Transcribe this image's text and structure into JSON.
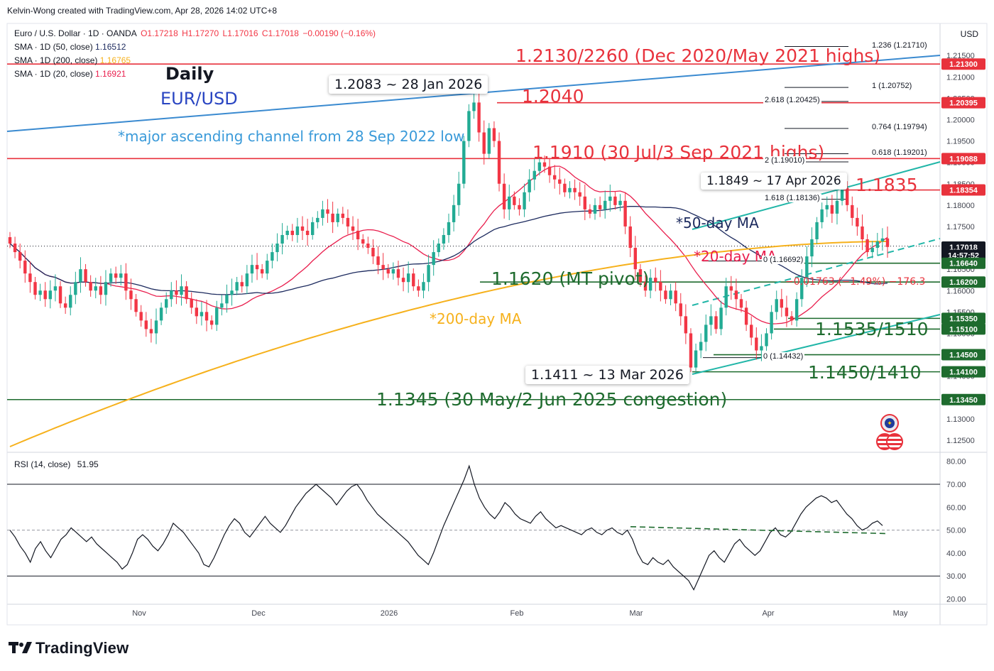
{
  "header": {
    "credit": "Kelvin-Wong created with TradingView.com, Apr 28, 2026 14:02 UTC+8",
    "symbol": "Euro / U.S. Dollar · 1D · OANDA",
    "ohlc": {
      "open": "O1.17218",
      "high": "H1.17270",
      "low": "L1.17016",
      "close": "C1.17018",
      "change": "−0.00190 (−0.16%)"
    },
    "sma50": {
      "label": "SMA · 1D (50, close)",
      "value": "1.16512",
      "color": "#1c2a5e"
    },
    "sma200": {
      "label": "SMA · 1D (200, close)",
      "value": "1.16765",
      "color": "#f6b11c"
    },
    "sma20": {
      "label": "SMA · 1D (20, close)",
      "value": "1.16921",
      "color": "#e91e4d"
    },
    "currency": "USD"
  },
  "rsi_header": {
    "label": "RSI (14, close)",
    "value": "51.95"
  },
  "branding": {
    "logo": "TradingView"
  },
  "annotations": {
    "daily": "Daily",
    "pair": "EUR/USD",
    "channel": "*major ascending channel from 28 Sep 2022 low",
    "r1": "1.2130/2260 (Dec 2020/May 2021 highs)",
    "r2": "1.2040",
    "r3": "1.1910 (30 Jul/3 Sep 2021 highs)",
    "r4": "1.1835",
    "pivot": "1.1620 (MT pivot)",
    "s1": "1.1535/1510",
    "s2": "1.1450/1410",
    "s3": "1.1345 (30 May/2 Jun 2025 congestion)",
    "ma50": "*50-day MA",
    "ma20": "*20-day MA",
    "ma200": "*200-day MA",
    "hi_jan": "1.2083 ~ 28 Jan 2026",
    "hi_apr": "1.1849 ~ 17 Apr 2026",
    "lo_mar": "1.1411 ~ 13 Mar 2026",
    "measure": "−0.01763 (−1.49%) −176.3"
  },
  "colors": {
    "red": "#e8323c",
    "green": "#1e6b2e",
    "blue": "#3a8ad0",
    "teal": "#21b6a8",
    "up": "#22ab94",
    "down": "#f23645",
    "orange": "#f6b11c",
    "navy": "#1c2a5e",
    "pink": "#e91e4d"
  },
  "fibs": [
    {
      "label": "1.236 (1.21710)",
      "price": 1.2171
    },
    {
      "label": "1 (1.20752)",
      "price": 1.20752
    },
    {
      "label": "2.618 (1.20425)",
      "price": 1.20425
    },
    {
      "label": "0.764 (1.19794)",
      "price": 1.19794
    },
    {
      "label": "0.618 (1.19201)",
      "price": 1.19201
    },
    {
      "label": "2 (1.19010)",
      "price": 1.1901
    },
    {
      "label": "1.618 (1.18136)",
      "price": 1.18136
    },
    {
      "label": "0 (1.16692)",
      "price": 1.16692
    },
    {
      "label": "0 (1.14432)",
      "price": 1.14432
    }
  ],
  "price_tags": [
    {
      "text": "1.21300",
      "price": 1.213,
      "color": "#e8323c"
    },
    {
      "text": "1.20395",
      "price": 1.20395,
      "color": "#e8323c"
    },
    {
      "text": "1.19088",
      "price": 1.19088,
      "color": "#e8323c"
    },
    {
      "text": "1.18354",
      "price": 1.18354,
      "color": "#e8323c"
    },
    {
      "text": "1.17018",
      "price": 1.17018,
      "color": "#131722"
    },
    {
      "text": "14:57:52",
      "price": 1.16826,
      "color": "#131722"
    },
    {
      "text": "1.16640",
      "price": 1.1664,
      "color": "#1e6b2e"
    },
    {
      "text": "1.16200",
      "price": 1.162,
      "color": "#1e6b2e"
    },
    {
      "text": "1.15350",
      "price": 1.1535,
      "color": "#1e6b2e"
    },
    {
      "text": "1.15100",
      "price": 1.151,
      "color": "#1e6b2e"
    },
    {
      "text": "1.14500",
      "price": 1.145,
      "color": "#1e6b2e"
    },
    {
      "text": "1.14100",
      "price": 1.141,
      "color": "#1e6b2e"
    },
    {
      "text": "1.13450",
      "price": 1.1345,
      "color": "#1e6b2e"
    }
  ],
  "chart_data": [
    {
      "type": "candlestick",
      "title": "Euro / U.S. Dollar · 1D · OANDA",
      "ylim": [
        1.1225,
        1.2225
      ],
      "y_ticks": [
        1.125,
        1.13,
        1.135,
        1.14,
        1.145,
        1.15,
        1.155,
        1.16,
        1.165,
        1.17,
        1.175,
        1.18,
        1.185,
        1.19,
        1.195,
        1.2,
        1.205,
        1.21,
        1.215
      ],
      "x_labels": [
        "Nov",
        "Dec",
        "2026",
        "Feb",
        "Mar",
        "Apr",
        "May"
      ],
      "closes": [
        1.171,
        1.169,
        1.167,
        1.164,
        1.162,
        1.159,
        1.16,
        1.158,
        1.16,
        1.161,
        1.157,
        1.156,
        1.159,
        1.162,
        1.165,
        1.162,
        1.16,
        1.161,
        1.159,
        1.162,
        1.164,
        1.163,
        1.164,
        1.16,
        1.158,
        1.155,
        1.153,
        1.151,
        1.15,
        1.153,
        1.156,
        1.158,
        1.16,
        1.159,
        1.161,
        1.158,
        1.156,
        1.154,
        1.155,
        1.153,
        1.152,
        1.156,
        1.157,
        1.159,
        1.16,
        1.162,
        1.161,
        1.164,
        1.166,
        1.165,
        1.164,
        1.167,
        1.169,
        1.171,
        1.173,
        1.174,
        1.173,
        1.175,
        1.174,
        1.173,
        1.176,
        1.177,
        1.179,
        1.178,
        1.176,
        1.178,
        1.177,
        1.175,
        1.174,
        1.172,
        1.171,
        1.17,
        1.168,
        1.166,
        1.165,
        1.164,
        1.165,
        1.163,
        1.162,
        1.164,
        1.161,
        1.16,
        1.162,
        1.166,
        1.169,
        1.171,
        1.173,
        1.176,
        1.18,
        1.185,
        1.195,
        1.202,
        1.204,
        1.197,
        1.192,
        1.198,
        1.195,
        1.185,
        1.179,
        1.182,
        1.18,
        1.179,
        1.183,
        1.186,
        1.188,
        1.19,
        1.189,
        1.187,
        1.186,
        1.185,
        1.183,
        1.184,
        1.183,
        1.182,
        1.179,
        1.178,
        1.18,
        1.179,
        1.181,
        1.182,
        1.18,
        1.181,
        1.175,
        1.17,
        1.165,
        1.162,
        1.16,
        1.163,
        1.162,
        1.16,
        1.158,
        1.16,
        1.157,
        1.154,
        1.15,
        1.142,
        1.146,
        1.148,
        1.152,
        1.154,
        1.151,
        1.156,
        1.161,
        1.16,
        1.158,
        1.156,
        1.152,
        1.149,
        1.146,
        1.147,
        1.15,
        1.155,
        1.158,
        1.156,
        1.154,
        1.153,
        1.158,
        1.163,
        1.168,
        1.172,
        1.176,
        1.179,
        1.18,
        1.178,
        1.181,
        1.184,
        1.18,
        1.177,
        1.175,
        1.172,
        1.169,
        1.17,
        1.1715,
        1.1722,
        1.1702
      ],
      "series": [
        {
          "name": "SMA · 1D (50, close)"
        },
        {
          "name": "SMA · 1D (200, close)"
        },
        {
          "name": "SMA · 1D (20, close)"
        }
      ]
    },
    {
      "type": "line",
      "title": "RSI (14, close)",
      "ylim": [
        18,
        83
      ],
      "y_ticks": [
        20,
        30,
        40,
        50,
        60,
        70,
        80
      ],
      "values": [
        50,
        47,
        43,
        40,
        36,
        42,
        45,
        41,
        38,
        42,
        46,
        48,
        51,
        49,
        47,
        45,
        47,
        44,
        42,
        40,
        38,
        36,
        33,
        35,
        40,
        46,
        48,
        46,
        43,
        41,
        44,
        48,
        53,
        51,
        49,
        46,
        43,
        40,
        35,
        34,
        38,
        43,
        48,
        52,
        55,
        53,
        49,
        47,
        50,
        53,
        56,
        53,
        51,
        49,
        52,
        56,
        60,
        63,
        66,
        68,
        70,
        68,
        66,
        64,
        61,
        64,
        67,
        69,
        70,
        67,
        63,
        60,
        57,
        55,
        53,
        51,
        49,
        47,
        45,
        42,
        39,
        37,
        35,
        40,
        46,
        52,
        57,
        62,
        67,
        72,
        78,
        70,
        64,
        60,
        57,
        55,
        58,
        62,
        60,
        57,
        55,
        54,
        53,
        56,
        58,
        55,
        53,
        51,
        52,
        51,
        50,
        49,
        48,
        50,
        51,
        49,
        48,
        50,
        51,
        49,
        48,
        50,
        46,
        40,
        36,
        35,
        38,
        36,
        35,
        37,
        34,
        32,
        30,
        28,
        24,
        29,
        34,
        39,
        41,
        38,
        36,
        40,
        44,
        46,
        43,
        41,
        39,
        41,
        45,
        49,
        51,
        48,
        47,
        49,
        53,
        57,
        60,
        62,
        64,
        65,
        64,
        62,
        63,
        60,
        57,
        55,
        52,
        50,
        51,
        53,
        54,
        52
      ]
    }
  ]
}
